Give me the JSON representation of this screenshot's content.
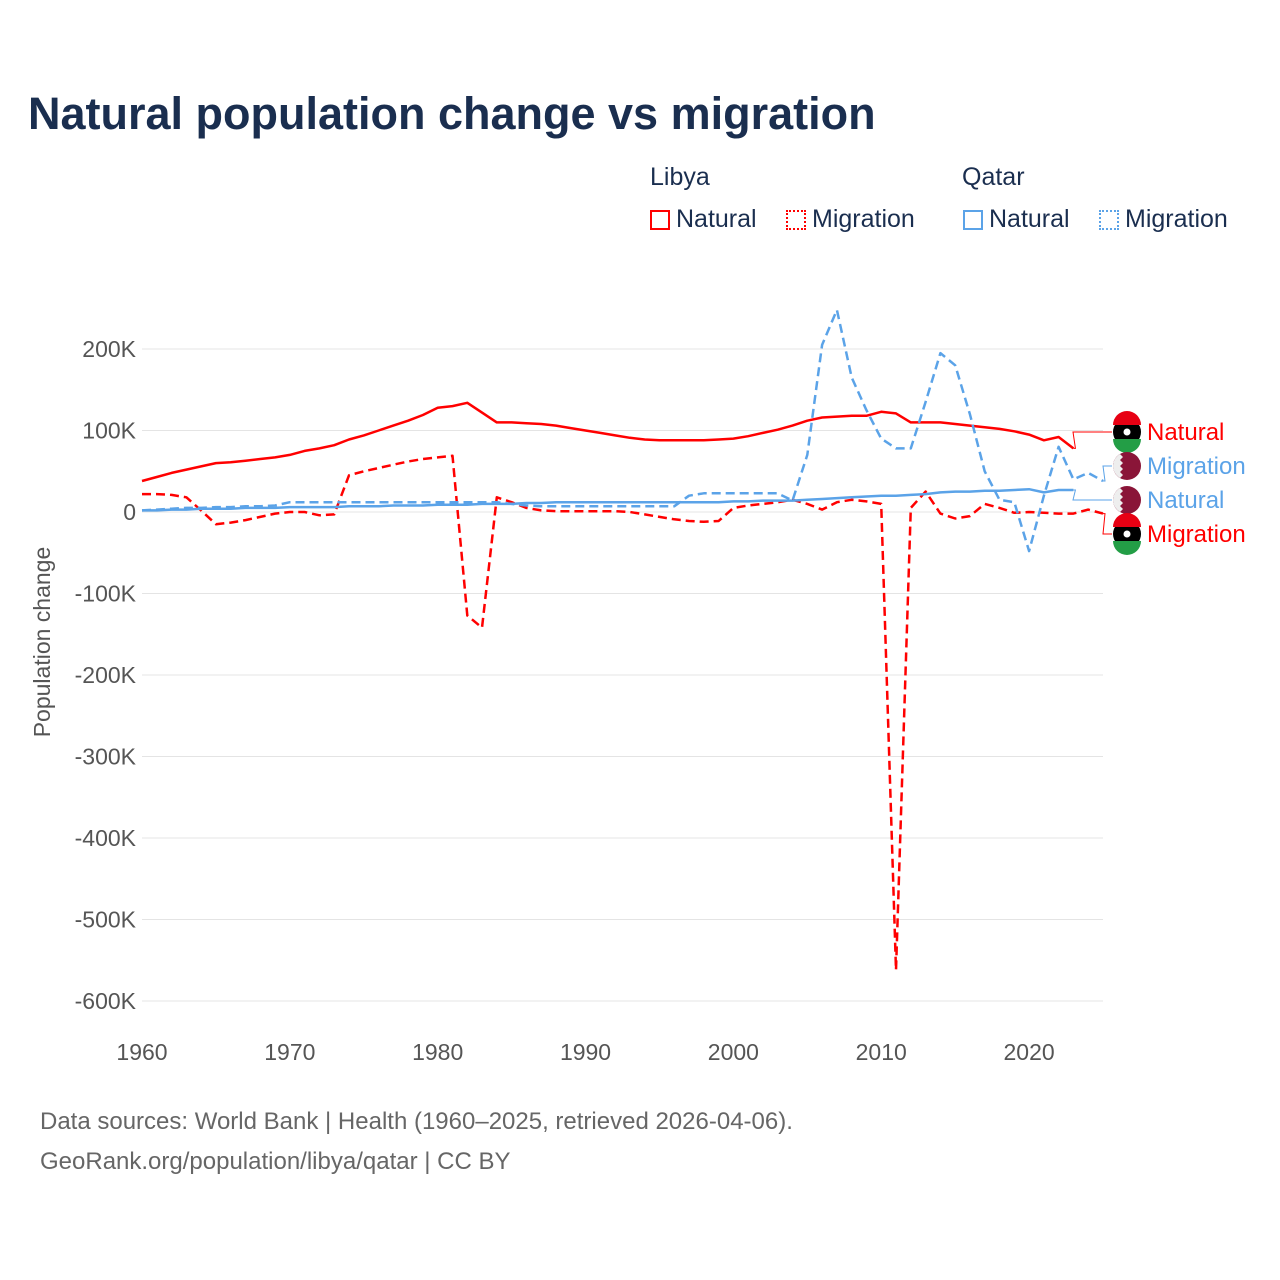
{
  "chart_data": {
    "type": "line",
    "title": "Natural population change vs migration",
    "xlabel": "",
    "ylabel": "Population change",
    "xlim": [
      1960,
      2025
    ],
    "ylim": [
      -600000,
      250000
    ],
    "x_ticks": [
      "1960",
      "1970",
      "1980",
      "1990",
      "2000",
      "2010",
      "2020"
    ],
    "y_ticks": [
      {
        "v": 200000,
        "l": "200K"
      },
      {
        "v": 100000,
        "l": "100K"
      },
      {
        "v": 0,
        "l": "0"
      },
      {
        "v": -100000,
        "l": "-100K"
      },
      {
        "v": -200000,
        "l": "-200K"
      },
      {
        "v": -300000,
        "l": "-300K"
      },
      {
        "v": -400000,
        "l": "-400K"
      },
      {
        "v": -500000,
        "l": "-500K"
      },
      {
        "v": -600000,
        "l": "-600K"
      }
    ],
    "grid": true,
    "legend_position": "top-right",
    "start_year": 1960,
    "units_note": "values in thousands",
    "series": [
      {
        "country": "Libya",
        "name": "Natural",
        "color": "#ff0000",
        "dash": false,
        "values": [
          38,
          43,
          48,
          52,
          56,
          60,
          61,
          63,
          65,
          67,
          70,
          75,
          78,
          82,
          89,
          94,
          100,
          106,
          112,
          119,
          128,
          130,
          134,
          122,
          110,
          110,
          109,
          108,
          106,
          103,
          100,
          97,
          94,
          91,
          89,
          88,
          88,
          88,
          88,
          89,
          90,
          93,
          97,
          101,
          106,
          112,
          116,
          117,
          118,
          118,
          123,
          121,
          110,
          110,
          110,
          108,
          106,
          104,
          102,
          99,
          95,
          88,
          92,
          78
        ]
      },
      {
        "country": "Libya",
        "name": "Migration",
        "color": "#ff0000",
        "dash": true,
        "values": [
          22,
          22,
          21,
          18,
          2,
          -15,
          -13,
          -10,
          -6,
          -2,
          0,
          0,
          -4,
          -3,
          45,
          50,
          54,
          58,
          62,
          65,
          67,
          69,
          -127,
          -142,
          18,
          12,
          5,
          2,
          1,
          1,
          1,
          1,
          1,
          0,
          -3,
          -6,
          -9,
          -11,
          -12,
          -11,
          5,
          8,
          10,
          12,
          15,
          10,
          3,
          12,
          15,
          13,
          10,
          -562,
          5,
          25,
          -2,
          -8,
          -5,
          10,
          5,
          -1,
          0,
          -1,
          -2,
          -2,
          3,
          -2
        ]
      },
      {
        "country": "Qatar",
        "name": "Natural",
        "color": "#5ba3e8",
        "dash": false,
        "values": [
          2,
          2,
          3,
          3,
          4,
          4,
          4,
          5,
          5,
          5,
          6,
          6,
          6,
          6,
          7,
          7,
          7,
          8,
          8,
          8,
          9,
          9,
          9,
          10,
          10,
          10,
          11,
          11,
          12,
          12,
          12,
          12,
          12,
          12,
          12,
          12,
          12,
          12,
          12,
          12,
          13,
          13,
          14,
          14,
          14,
          15,
          16,
          17,
          18,
          19,
          20,
          20,
          21,
          22,
          24,
          25,
          25,
          26,
          26,
          27,
          28,
          24,
          27,
          27
        ]
      },
      {
        "country": "Qatar",
        "name": "Migration",
        "color": "#5ba3e8",
        "dash": true,
        "values": [
          2,
          3,
          4,
          5,
          5,
          6,
          6,
          7,
          7,
          8,
          12,
          12,
          12,
          12,
          12,
          12,
          12,
          12,
          12,
          12,
          12,
          12,
          12,
          12,
          12,
          10,
          8,
          7,
          7,
          7,
          7,
          7,
          7,
          7,
          7,
          7,
          7,
          20,
          23,
          23,
          23,
          23,
          23,
          23,
          14,
          70,
          205,
          248,
          165,
          125,
          90,
          78,
          78,
          135,
          195,
          180,
          120,
          50,
          15,
          12,
          -48,
          20,
          80,
          40,
          48,
          38
        ]
      }
    ],
    "end_labels": [
      {
        "label": "Natural",
        "country": "Libya",
        "color": "#ff0000"
      },
      {
        "label": "Migration",
        "country": "Qatar",
        "color": "#5ba3e8"
      },
      {
        "label": "Natural",
        "country": "Qatar",
        "color": "#5ba3e8"
      },
      {
        "label": "Migration",
        "country": "Libya",
        "color": "#ff0000"
      }
    ]
  },
  "legend": {
    "groups": [
      {
        "title": "Libya",
        "items": [
          "Natural",
          "Migration"
        ]
      },
      {
        "title": "Qatar",
        "items": [
          "Natural",
          "Migration"
        ]
      }
    ]
  },
  "footer": {
    "line1": "Data sources: World Bank | Health (1960–2025, retrieved 2026-04-06).",
    "line2": "GeoRank.org/population/libya/qatar | CC BY"
  }
}
